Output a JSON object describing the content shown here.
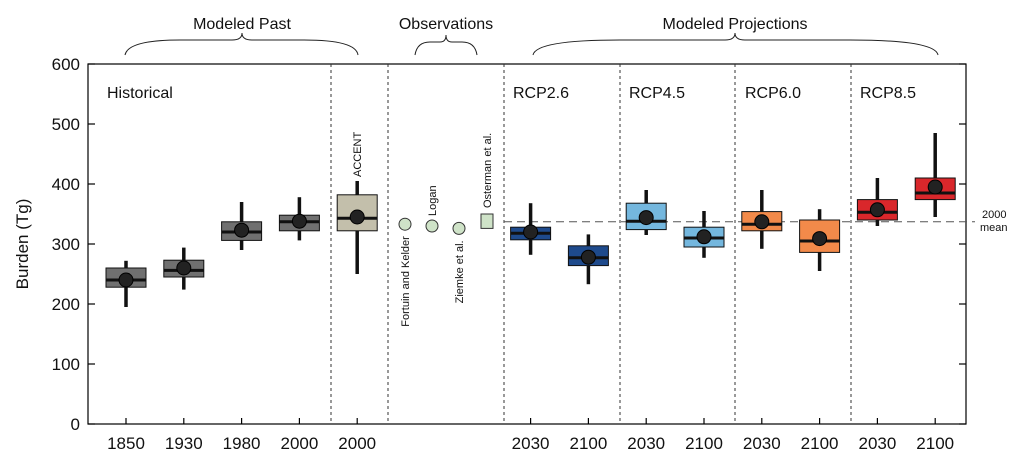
{
  "chart_data": {
    "type": "box",
    "ylabel": "Burden (Tg)",
    "ylim": [
      0,
      600
    ],
    "yticks": [
      0,
      100,
      200,
      300,
      400,
      500,
      600
    ],
    "grid": false,
    "group_labels": {
      "past": "Modeled Past",
      "obs": "Observations",
      "proj": "Modeled Projections"
    },
    "panel_labels": {
      "historical": "Historical",
      "rcp26": "RCP2.6",
      "rcp45": "RCP4.5",
      "rcp60": "RCP6.0",
      "rcp85": "RCP8.5"
    },
    "reference_line": {
      "value": 337,
      "label_line1": "2000",
      "label_line2": "mean"
    },
    "boxes": [
      {
        "label": "1850",
        "slot": 0,
        "whisker_low": 195,
        "q1": 228,
        "median": 240,
        "q3": 260,
        "whisker_high": 272,
        "mean": 240,
        "color": "#707070"
      },
      {
        "label": "1930",
        "slot": 1,
        "whisker_low": 224,
        "q1": 245,
        "median": 256,
        "q3": 273,
        "whisker_high": 294,
        "mean": 260,
        "color": "#707070"
      },
      {
        "label": "1980",
        "slot": 2,
        "whisker_low": 290,
        "q1": 306,
        "median": 320,
        "q3": 337,
        "whisker_high": 370,
        "mean": 323,
        "color": "#707070"
      },
      {
        "label": "2000",
        "slot": 3,
        "whisker_low": 306,
        "q1": 322,
        "median": 337,
        "q3": 348,
        "whisker_high": 378,
        "mean": 338,
        "color": "#707070"
      },
      {
        "label": "2000",
        "slot": 4,
        "whisker_low": 250,
        "q1": 322,
        "median": 343,
        "q3": 382,
        "whisker_high": 405,
        "mean": 345,
        "color": "#c3bfab",
        "annotation": "ACCENT"
      },
      {
        "label": "2030",
        "slot": 7,
        "whisker_low": 282,
        "q1": 307,
        "median": 318,
        "q3": 328,
        "whisker_high": 368,
        "mean": 320,
        "color": "#1e4a8c"
      },
      {
        "label": "2100",
        "slot": 8,
        "whisker_low": 233,
        "q1": 264,
        "median": 277,
        "q3": 297,
        "whisker_high": 316,
        "mean": 278,
        "color": "#1e4a8c"
      },
      {
        "label": "2030",
        "slot": 9,
        "whisker_low": 315,
        "q1": 324,
        "median": 338,
        "q3": 368,
        "whisker_high": 390,
        "mean": 344,
        "color": "#74b7de"
      },
      {
        "label": "2100",
        "slot": 10,
        "whisker_low": 277,
        "q1": 295,
        "median": 310,
        "q3": 328,
        "whisker_high": 355,
        "mean": 312,
        "color": "#74b7de"
      },
      {
        "label": "2030",
        "slot": 11,
        "whisker_low": 292,
        "q1": 322,
        "median": 333,
        "q3": 354,
        "whisker_high": 390,
        "mean": 337,
        "color": "#f28a4a"
      },
      {
        "label": "2100",
        "slot": 12,
        "whisker_low": 255,
        "q1": 286,
        "median": 305,
        "q3": 340,
        "whisker_high": 358,
        "mean": 309,
        "color": "#f28a4a"
      },
      {
        "label": "2030",
        "slot": 13,
        "whisker_low": 330,
        "q1": 340,
        "median": 353,
        "q3": 374,
        "whisker_high": 410,
        "mean": 357,
        "color": "#d9272b"
      },
      {
        "label": "2100",
        "slot": 14,
        "whisker_low": 345,
        "q1": 374,
        "median": 385,
        "q3": 410,
        "whisker_high": 485,
        "mean": 395,
        "color": "#d9272b"
      }
    ],
    "observations": [
      {
        "label": "Fortuin and Kelder",
        "value": 333,
        "kind": "point"
      },
      {
        "label": "Logan",
        "value": 330,
        "kind": "point"
      },
      {
        "label": "Ziemke et al.",
        "value": 326,
        "kind": "point"
      },
      {
        "label": "Osterman et al.",
        "q1": 326,
        "q3": 350,
        "kind": "box"
      }
    ],
    "colors": {
      "historical": "#707070",
      "accent": "#c3bfab",
      "obs": "#cfe3c8",
      "rcp26": "#1e4a8c",
      "rcp45": "#74b7de",
      "rcp60": "#f28a4a",
      "rcp85": "#d9272b"
    }
  }
}
